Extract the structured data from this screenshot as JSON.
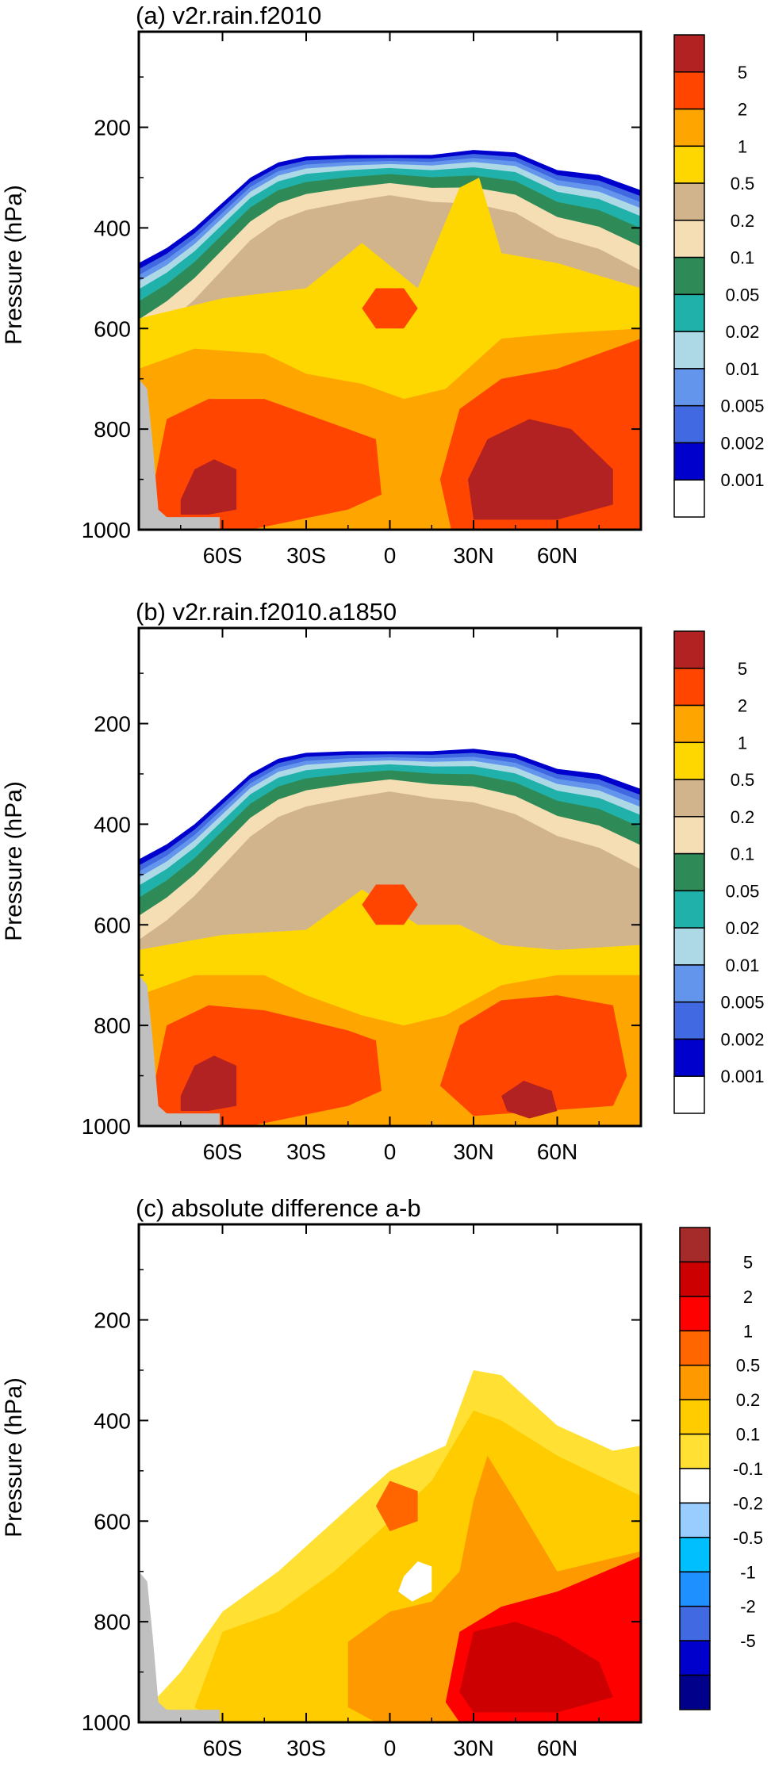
{
  "chart_data": [
    {
      "type": "contour",
      "title": "(a) v2r.rain.f2010",
      "ylabel": "Pressure (hPa)",
      "xlabel": "",
      "y_ticks": [
        "200",
        "400",
        "600",
        "800",
        "1000"
      ],
      "x_ticks": [
        "60S",
        "30S",
        "0",
        "30N",
        "60N"
      ],
      "x_tick_values": [
        -60,
        -30,
        0,
        30,
        60
      ],
      "y_tick_values": [
        200,
        400,
        600,
        800,
        1000
      ],
      "xlim": [
        -90,
        90
      ],
      "ylim": [
        1000,
        10
      ],
      "colorbar": {
        "labels": [
          "5",
          "2",
          "1",
          "0.5",
          "0.2",
          "0.1",
          "0.05",
          "0.02",
          "0.01",
          "0.005",
          "0.002",
          "0.001"
        ],
        "colors": [
          "#b22222",
          "#ff4500",
          "#ffa500",
          "#ffd700",
          "#d2b48c",
          "#f5deb3",
          "#2e8b57",
          "#20b2aa",
          "#add8e6",
          "#6495ed",
          "#4169e1",
          "#0000cd",
          "#ffffff"
        ]
      },
      "cloud_top": [
        [
          -90,
          470
        ],
        [
          -80,
          440
        ],
        [
          -70,
          400
        ],
        [
          -60,
          350
        ],
        [
          -50,
          300
        ],
        [
          -40,
          270
        ],
        [
          -30,
          258
        ],
        [
          -15,
          255
        ],
        [
          0,
          255
        ],
        [
          15,
          255
        ],
        [
          30,
          245
        ],
        [
          45,
          250
        ],
        [
          60,
          285
        ],
        [
          75,
          295
        ],
        [
          90,
          325
        ]
      ],
      "blobs": [
        {
          "color": "#ffd700",
          "points": [
            [
              -90,
              580
            ],
            [
              -60,
              540
            ],
            [
              -30,
              520
            ],
            [
              -10,
              430
            ],
            [
              10,
              520
            ],
            [
              25,
              320
            ],
            [
              32,
              300
            ],
            [
              40,
              450
            ],
            [
              60,
              470
            ],
            [
              90,
              520
            ],
            [
              90,
              1000
            ],
            [
              -90,
              1000
            ]
          ]
        },
        {
          "color": "#ffa500",
          "points": [
            [
              -90,
              680
            ],
            [
              -70,
              640
            ],
            [
              -45,
              650
            ],
            [
              -30,
              690
            ],
            [
              -10,
              710
            ],
            [
              5,
              740
            ],
            [
              20,
              720
            ],
            [
              40,
              620
            ],
            [
              60,
              610
            ],
            [
              90,
              600
            ],
            [
              90,
              1000
            ],
            [
              -90,
              1000
            ]
          ]
        },
        {
          "color": "#ff4500",
          "points": [
            [
              -85,
              920
            ],
            [
              -80,
              780
            ],
            [
              -65,
              740
            ],
            [
              -45,
              740
            ],
            [
              -30,
              770
            ],
            [
              -15,
              800
            ],
            [
              -5,
              820
            ],
            [
              -3,
              930
            ],
            [
              -15,
              960
            ],
            [
              -50,
              1000
            ],
            [
              -85,
              1000
            ]
          ]
        },
        {
          "color": "#ff4500",
          "points": [
            [
              18,
              900
            ],
            [
              25,
              760
            ],
            [
              40,
              700
            ],
            [
              60,
              680
            ],
            [
              75,
              650
            ],
            [
              90,
              620
            ],
            [
              90,
              1000
            ],
            [
              22,
              1000
            ]
          ]
        },
        {
          "color": "#ff4500",
          "points": [
            [
              -10,
              560
            ],
            [
              -5,
              520
            ],
            [
              5,
              520
            ],
            [
              10,
              560
            ],
            [
              5,
              600
            ],
            [
              -5,
              600
            ]
          ]
        },
        {
          "color": "#b22222",
          "points": [
            [
              -75,
              940
            ],
            [
              -70,
              880
            ],
            [
              -63,
              860
            ],
            [
              -55,
              880
            ],
            [
              -55,
              960
            ],
            [
              -65,
              970
            ],
            [
              -75,
              970
            ]
          ]
        },
        {
          "color": "#b22222",
          "points": [
            [
              28,
              900
            ],
            [
              35,
              820
            ],
            [
              50,
              780
            ],
            [
              65,
              800
            ],
            [
              80,
              880
            ],
            [
              80,
              950
            ],
            [
              60,
              980
            ],
            [
              30,
              980
            ]
          ]
        }
      ]
    },
    {
      "type": "contour",
      "title": "(b) v2r.rain.f2010.a1850",
      "ylabel": "Pressure (hPa)",
      "xlabel": "",
      "y_ticks": [
        "200",
        "400",
        "600",
        "800",
        "1000"
      ],
      "x_ticks": [
        "60S",
        "30S",
        "0",
        "30N",
        "60N"
      ],
      "x_tick_values": [
        -60,
        -30,
        0,
        30,
        60
      ],
      "y_tick_values": [
        200,
        400,
        600,
        800,
        1000
      ],
      "xlim": [
        -90,
        90
      ],
      "ylim": [
        1000,
        10
      ],
      "colorbar": {
        "labels": [
          "5",
          "2",
          "1",
          "0.5",
          "0.2",
          "0.1",
          "0.05",
          "0.02",
          "0.01",
          "0.005",
          "0.002",
          "0.001"
        ],
        "colors": [
          "#b22222",
          "#ff4500",
          "#ffa500",
          "#ffd700",
          "#d2b48c",
          "#f5deb3",
          "#2e8b57",
          "#20b2aa",
          "#add8e6",
          "#6495ed",
          "#4169e1",
          "#0000cd",
          "#ffffff"
        ]
      },
      "cloud_top": [
        [
          -90,
          470
        ],
        [
          -80,
          440
        ],
        [
          -70,
          400
        ],
        [
          -60,
          350
        ],
        [
          -50,
          300
        ],
        [
          -40,
          270
        ],
        [
          -30,
          258
        ],
        [
          -15,
          255
        ],
        [
          0,
          255
        ],
        [
          15,
          255
        ],
        [
          30,
          250
        ],
        [
          45,
          260
        ],
        [
          60,
          290
        ],
        [
          75,
          300
        ],
        [
          90,
          330
        ]
      ],
      "blobs": [
        {
          "color": "#ffd700",
          "points": [
            [
              -90,
              650
            ],
            [
              -60,
              620
            ],
            [
              -30,
              610
            ],
            [
              -10,
              530
            ],
            [
              10,
              600
            ],
            [
              25,
              600
            ],
            [
              40,
              640
            ],
            [
              60,
              650
            ],
            [
              90,
              640
            ],
            [
              90,
              1000
            ],
            [
              -90,
              1000
            ]
          ]
        },
        {
          "color": "#ffa500",
          "points": [
            [
              -90,
              740
            ],
            [
              -70,
              700
            ],
            [
              -45,
              700
            ],
            [
              -30,
              740
            ],
            [
              -10,
              780
            ],
            [
              5,
              800
            ],
            [
              20,
              780
            ],
            [
              40,
              720
            ],
            [
              60,
              700
            ],
            [
              90,
              700
            ],
            [
              90,
              1000
            ],
            [
              -90,
              1000
            ]
          ]
        },
        {
          "color": "#ff4500",
          "points": [
            [
              -85,
              930
            ],
            [
              -80,
              800
            ],
            [
              -65,
              760
            ],
            [
              -45,
              770
            ],
            [
              -30,
              790
            ],
            [
              -15,
              810
            ],
            [
              -5,
              830
            ],
            [
              -3,
              930
            ],
            [
              -15,
              960
            ],
            [
              -50,
              1000
            ],
            [
              -85,
              1000
            ]
          ]
        },
        {
          "color": "#ff4500",
          "points": [
            [
              18,
              920
            ],
            [
              25,
              800
            ],
            [
              40,
              750
            ],
            [
              60,
              740
            ],
            [
              80,
              760
            ],
            [
              85,
              900
            ],
            [
              80,
              960
            ],
            [
              30,
              980
            ]
          ]
        },
        {
          "color": "#ff4500",
          "points": [
            [
              -10,
              560
            ],
            [
              -5,
              520
            ],
            [
              5,
              520
            ],
            [
              10,
              560
            ],
            [
              5,
              600
            ],
            [
              -5,
              600
            ]
          ]
        },
        {
          "color": "#b22222",
          "points": [
            [
              -75,
              940
            ],
            [
              -70,
              880
            ],
            [
              -63,
              860
            ],
            [
              -55,
              880
            ],
            [
              -55,
              960
            ],
            [
              -65,
              970
            ],
            [
              -75,
              970
            ]
          ]
        },
        {
          "color": "#b22222",
          "points": [
            [
              40,
              940
            ],
            [
              48,
              910
            ],
            [
              58,
              930
            ],
            [
              60,
              970
            ],
            [
              50,
              985
            ],
            [
              42,
              970
            ]
          ]
        }
      ]
    },
    {
      "type": "contour",
      "title": "(c) absolute difference a-b",
      "ylabel": "Pressure (hPa)",
      "xlabel": "",
      "y_ticks": [
        "200",
        "400",
        "600",
        "800",
        "1000"
      ],
      "x_ticks": [
        "60S",
        "30S",
        "0",
        "30N",
        "60N"
      ],
      "x_tick_values": [
        -60,
        -30,
        0,
        30,
        60
      ],
      "y_tick_values": [
        200,
        400,
        600,
        800,
        1000
      ],
      "xlim": [
        -90,
        90
      ],
      "ylim": [
        1000,
        10
      ],
      "colorbar": {
        "labels": [
          "5",
          "2",
          "1",
          "0.5",
          "0.2",
          "0.1",
          "-0.1",
          "-0.2",
          "-0.5",
          "-1",
          "-2",
          "-5"
        ],
        "colors": [
          "#a52a2a",
          "#cc0000",
          "#ff0000",
          "#ff6600",
          "#ff9900",
          "#ffcc00",
          "#ffe033",
          "#ffffff",
          "#99ccff",
          "#00bfff",
          "#1e90ff",
          "#4169e1",
          "#0000cd",
          "#00008b"
        ]
      },
      "blobs": [
        {
          "color": "#ffe033",
          "points": [
            [
              -90,
              990
            ],
            [
              -75,
              900
            ],
            [
              -60,
              780
            ],
            [
              -40,
              700
            ],
            [
              -20,
              600
            ],
            [
              0,
              500
            ],
            [
              20,
              450
            ],
            [
              30,
              300
            ],
            [
              40,
              310
            ],
            [
              60,
              410
            ],
            [
              80,
              460
            ],
            [
              90,
              450
            ],
            [
              90,
              1000
            ],
            [
              -75,
              1000
            ]
          ]
        },
        {
          "color": "#ffcc00",
          "points": [
            [
              -70,
              970
            ],
            [
              -60,
              820
            ],
            [
              -40,
              780
            ],
            [
              -20,
              700
            ],
            [
              0,
              600
            ],
            [
              15,
              520
            ],
            [
              30,
              380
            ],
            [
              40,
              400
            ],
            [
              60,
              470
            ],
            [
              90,
              550
            ],
            [
              90,
              1000
            ],
            [
              -60,
              1000
            ]
          ]
        },
        {
          "color": "#ff9900",
          "points": [
            [
              -15,
              970
            ],
            [
              -15,
              840
            ],
            [
              0,
              780
            ],
            [
              15,
              760
            ],
            [
              25,
              700
            ],
            [
              30,
              560
            ],
            [
              35,
              470
            ],
            [
              45,
              560
            ],
            [
              60,
              700
            ],
            [
              90,
              660
            ],
            [
              90,
              1000
            ],
            [
              -5,
              1000
            ]
          ]
        },
        {
          "color": "#ff6600",
          "points": [
            [
              -5,
              570
            ],
            [
              0,
              520
            ],
            [
              10,
              540
            ],
            [
              10,
              600
            ],
            [
              0,
              620
            ]
          ]
        },
        {
          "color": "#ff0000",
          "points": [
            [
              20,
              960
            ],
            [
              25,
              820
            ],
            [
              40,
              770
            ],
            [
              60,
              740
            ],
            [
              90,
              670
            ],
            [
              90,
              1000
            ],
            [
              25,
              1000
            ]
          ]
        },
        {
          "color": "#cc0000",
          "points": [
            [
              25,
              940
            ],
            [
              30,
              820
            ],
            [
              45,
              800
            ],
            [
              60,
              830
            ],
            [
              75,
              880
            ],
            [
              80,
              950
            ],
            [
              60,
              980
            ],
            [
              30,
              980
            ]
          ]
        },
        {
          "color": "#ffffff",
          "points": [
            [
              5,
              710
            ],
            [
              10,
              680
            ],
            [
              15,
              690
            ],
            [
              15,
              740
            ],
            [
              8,
              760
            ],
            [
              3,
              740
            ]
          ]
        }
      ]
    }
  ]
}
